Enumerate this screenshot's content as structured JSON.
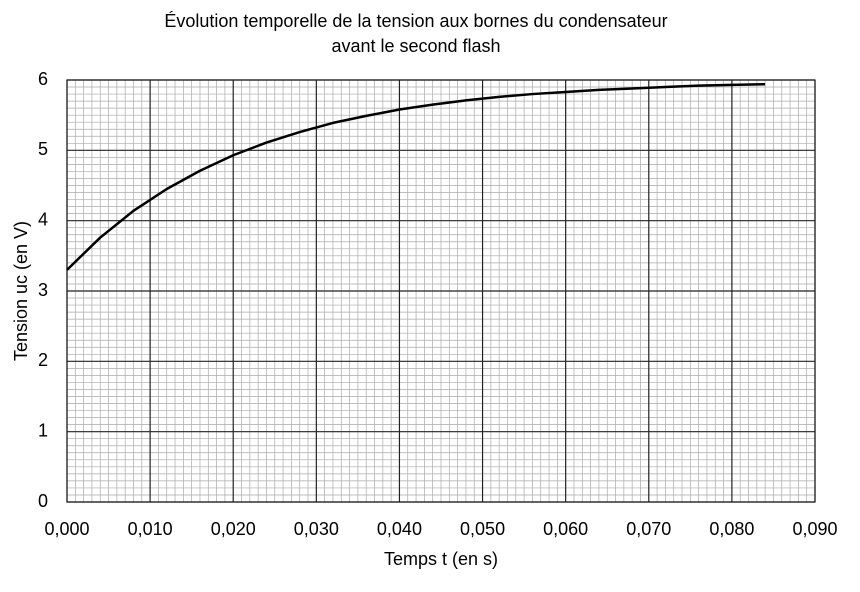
{
  "chart_data": {
    "type": "line",
    "title": [
      "Évolution temporelle de la tension aux bornes du condensateur",
      "avant le second flash"
    ],
    "x_label": "Temps t (en s)",
    "y_label": "Tension uc (en V)",
    "x": [
      0,
      0.004,
      0.008,
      0.012,
      0.016,
      0.02,
      0.024,
      0.028,
      0.032,
      0.036,
      0.04,
      0.044,
      0.048,
      0.052,
      0.056,
      0.06,
      0.064,
      0.068,
      0.072,
      0.076,
      0.08,
      0.084
    ],
    "series": [
      {
        "color": "#000000",
        "values": [
          3.3,
          3.76,
          4.14,
          4.45,
          4.71,
          4.93,
          5.11,
          5.26,
          5.39,
          5.49,
          5.58,
          5.65,
          5.71,
          5.76,
          5.8,
          5.83,
          5.86,
          5.88,
          5.9,
          5.92,
          5.93,
          5.94
        ]
      }
    ],
    "xlim": [
      0,
      0.09
    ],
    "ylim": [
      0,
      6
    ],
    "xticks": [
      {
        "value": 0,
        "label": "0,000"
      },
      {
        "value": 0.01,
        "label": "0,010"
      },
      {
        "value": 0.02,
        "label": "0,020"
      },
      {
        "value": 0.03,
        "label": "0,030"
      },
      {
        "value": 0.04,
        "label": "0,040"
      },
      {
        "value": 0.05,
        "label": "0,050"
      },
      {
        "value": 0.06,
        "label": "0,060"
      },
      {
        "value": 0.07,
        "label": "0,070"
      },
      {
        "value": 0.08,
        "label": "0,080"
      },
      {
        "value": 0.09,
        "label": "0,090"
      }
    ],
    "yticks": [
      0,
      1,
      2,
      3,
      4,
      5,
      6
    ],
    "grid": true,
    "minor_grid": true
  }
}
